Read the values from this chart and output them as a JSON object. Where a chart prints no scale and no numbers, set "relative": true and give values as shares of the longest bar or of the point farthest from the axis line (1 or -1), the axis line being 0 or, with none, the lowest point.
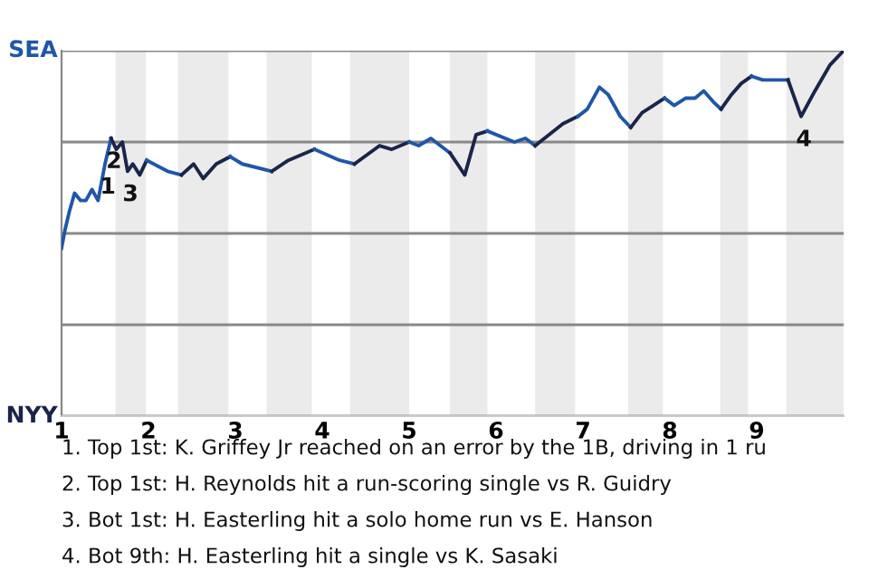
{
  "chart_data": {
    "type": "line",
    "relative": true,
    "xlim": [
      1,
      10
    ],
    "xticks": [
      1,
      2,
      3,
      4,
      5,
      6,
      7,
      8,
      9
    ],
    "grid": "y",
    "line_style": "solid",
    "marker": "none",
    "series": [
      {
        "color": "#1f57a8",
        "x": [
          1.0,
          1.04,
          1.09,
          1.15,
          1.22,
          1.28,
          1.35,
          1.42,
          1.5,
          1.57
        ],
        "values": [
          0.46,
          0.51,
          0.56,
          0.61,
          0.59,
          0.59,
          0.62,
          0.59,
          0.69,
          0.76
        ]
      },
      {
        "color": "#1b2449",
        "x": [
          1.57,
          1.63,
          1.7,
          1.76,
          1.82,
          1.9,
          1.98
        ],
        "values": [
          0.76,
          0.73,
          0.75,
          0.67,
          0.69,
          0.66,
          0.7
        ]
      },
      {
        "color": "#1f57a8",
        "x": [
          1.98,
          2.22,
          2.38
        ],
        "values": [
          0.7,
          0.67,
          0.66
        ]
      },
      {
        "color": "#1b2449",
        "x": [
          2.38,
          2.52,
          2.63,
          2.78,
          2.94
        ],
        "values": [
          0.66,
          0.69,
          0.65,
          0.69,
          0.71
        ]
      },
      {
        "color": "#1f57a8",
        "x": [
          2.94,
          3.08,
          3.42
        ],
        "values": [
          0.71,
          0.69,
          0.67
        ]
      },
      {
        "color": "#1b2449",
        "x": [
          3.42,
          3.61,
          3.91
        ],
        "values": [
          0.67,
          0.7,
          0.73
        ]
      },
      {
        "color": "#1f57a8",
        "x": [
          3.91,
          4.2,
          4.37
        ],
        "values": [
          0.73,
          0.7,
          0.69
        ]
      },
      {
        "color": "#1b2449",
        "x": [
          4.37,
          4.66,
          4.8,
          5.0
        ],
        "values": [
          0.69,
          0.74,
          0.73,
          0.75
        ]
      },
      {
        "color": "#1f57a8",
        "x": [
          5.0,
          5.11,
          5.25,
          5.47
        ],
        "values": [
          0.75,
          0.74,
          0.76,
          0.72
        ]
      },
      {
        "color": "#1b2449",
        "x": [
          5.47,
          5.64,
          5.77,
          5.9
        ],
        "values": [
          0.72,
          0.66,
          0.77,
          0.78
        ]
      },
      {
        "color": "#1f57a8",
        "x": [
          5.9,
          6.21,
          6.34,
          6.45
        ],
        "values": [
          0.78,
          0.75,
          0.76,
          0.74
        ]
      },
      {
        "color": "#1b2449",
        "x": [
          6.45,
          6.77,
          6.94
        ],
        "values": [
          0.74,
          0.8,
          0.82
        ]
      },
      {
        "color": "#1f57a8",
        "x": [
          6.94,
          7.05,
          7.19,
          7.29,
          7.43,
          7.55
        ],
        "values": [
          0.82,
          0.84,
          0.9,
          0.88,
          0.82,
          0.79
        ]
      },
      {
        "color": "#1b2449",
        "x": [
          7.55,
          7.68,
          7.81,
          7.94
        ],
        "values": [
          0.79,
          0.83,
          0.85,
          0.87
        ]
      },
      {
        "color": "#1f57a8",
        "x": [
          7.94,
          8.05,
          8.18,
          8.29,
          8.39,
          8.5,
          8.59
        ],
        "values": [
          0.87,
          0.85,
          0.87,
          0.87,
          0.89,
          0.86,
          0.84
        ]
      },
      {
        "color": "#1b2449",
        "x": [
          8.59,
          8.71,
          8.82,
          8.94
        ],
        "values": [
          0.84,
          0.88,
          0.91,
          0.93
        ]
      },
      {
        "color": "#1f57a8",
        "x": [
          8.94,
          9.07,
          9.36
        ],
        "values": [
          0.93,
          0.92,
          0.92
        ]
      },
      {
        "color": "#1b2449",
        "x": [
          9.36,
          9.51,
          9.67,
          9.84,
          10.0
        ],
        "values": [
          0.92,
          0.82,
          0.89,
          0.96,
          1
        ]
      }
    ],
    "bands": [
      {
        "axis": "x",
        "from": 1.62,
        "to": 1.97,
        "color": "#ebebeb"
      },
      {
        "axis": "x",
        "from": 2.34,
        "to": 2.92,
        "color": "#ebebeb"
      },
      {
        "axis": "x",
        "from": 3.36,
        "to": 3.88,
        "color": "#ebebeb"
      },
      {
        "axis": "x",
        "from": 4.32,
        "to": 5.0,
        "color": "#ebebeb"
      },
      {
        "axis": "x",
        "from": 5.47,
        "to": 5.9,
        "color": "#ebebeb"
      },
      {
        "axis": "x",
        "from": 6.45,
        "to": 6.91,
        "color": "#ebebeb"
      },
      {
        "axis": "x",
        "from": 7.52,
        "to": 7.92,
        "color": "#ebebeb"
      },
      {
        "axis": "x",
        "from": 8.58,
        "to": 8.9,
        "color": "#ebebeb"
      },
      {
        "axis": "x",
        "from": 9.34,
        "to": 10,
        "color": "#ebebeb"
      }
    ],
    "annotations": [
      {
        "text": "1",
        "x": 1.5,
        "y": 0.69
      },
      {
        "text": "2",
        "x": 1.57,
        "y": 0.76
      },
      {
        "text": "3",
        "x": 1.76,
        "y": 0.67
      },
      {
        "text": "4",
        "x": 9.51,
        "y": 0.82
      },
      "SEA",
      "NYY",
      "1. Top 1st: K. Griffey Jr reached on an error by the 1B, driving in 1 ru",
      "2. Top 1st: H. Reynolds hit a run-scoring single vs R. Guidry",
      "3. Bot 1st: H. Easterling hit a solo home run vs E. Hanson",
      "4. Bot 9th: H. Easterling hit a single vs K. Sasaki"
    ]
  }
}
